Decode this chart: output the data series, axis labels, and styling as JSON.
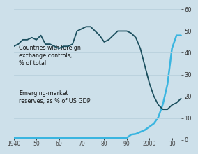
{
  "background_color": "#cde0ea",
  "dark_line_color": "#1b4f5e",
  "light_line_color": "#3ab5e0",
  "ylabel_right_color": "#333333",
  "xlabel_color": "#444444",
  "annotation_color": "#111111",
  "right_yticks": [
    0,
    10,
    20,
    30,
    40,
    50,
    60
  ],
  "annotation1": "Countries with foreign-\nexchange controls,\n% of total",
  "annotation2": "Emerging-market\nreserves, as % of US GDP",
  "dark_x": [
    1940,
    1942,
    1944,
    1946,
    1948,
    1950,
    1952,
    1954,
    1956,
    1958,
    1960,
    1962,
    1964,
    1966,
    1968,
    1970,
    1972,
    1974,
    1976,
    1978,
    1980,
    1982,
    1984,
    1986,
    1988,
    1990,
    1992,
    1994,
    1996,
    1998,
    2000,
    2002,
    2004,
    2006,
    2008,
    2010,
    2012,
    2014
  ],
  "dark_y": [
    43,
    44,
    46,
    46,
    47,
    46,
    48,
    44,
    44,
    43,
    42,
    43,
    43,
    44,
    50,
    51,
    52,
    52,
    50,
    48,
    45,
    46,
    48,
    50,
    50,
    50,
    49,
    47,
    42,
    34,
    26,
    20,
    16,
    14,
    14,
    16,
    17,
    19
  ],
  "light_x": [
    1940,
    1942,
    1944,
    1946,
    1948,
    1950,
    1952,
    1954,
    1956,
    1958,
    1960,
    1962,
    1964,
    1966,
    1968,
    1970,
    1972,
    1974,
    1976,
    1978,
    1980,
    1982,
    1984,
    1986,
    1988,
    1990,
    1992,
    1994,
    1996,
    1998,
    2000,
    2002,
    2004,
    2006,
    2008,
    2010,
    2012,
    2014
  ],
  "light_y": [
    0.3,
    0.3,
    0.3,
    0.3,
    0.3,
    0.3,
    0.3,
    0.3,
    0.3,
    0.3,
    0.3,
    0.3,
    0.3,
    0.3,
    0.3,
    0.3,
    0.3,
    0.3,
    0.3,
    0.3,
    0.3,
    0.3,
    0.3,
    0.3,
    0.3,
    0.3,
    0.8,
    0.9,
    1.2,
    1.5,
    2.0,
    2.5,
    3.5,
    5.5,
    8.5,
    14,
    16,
    16
  ],
  "xlim": [
    1940,
    2015
  ],
  "ylim_left": [
    0,
    20
  ],
  "ylim_right": [
    0,
    60
  ],
  "gridline_color": "#b8d0dc",
  "xtick_positions": [
    1940,
    1950,
    1960,
    1970,
    1980,
    1990,
    2000,
    2010
  ],
  "xtick_labels": [
    "1940",
    "50",
    "60",
    "70",
    "80",
    "90",
    "2000",
    "10"
  ]
}
